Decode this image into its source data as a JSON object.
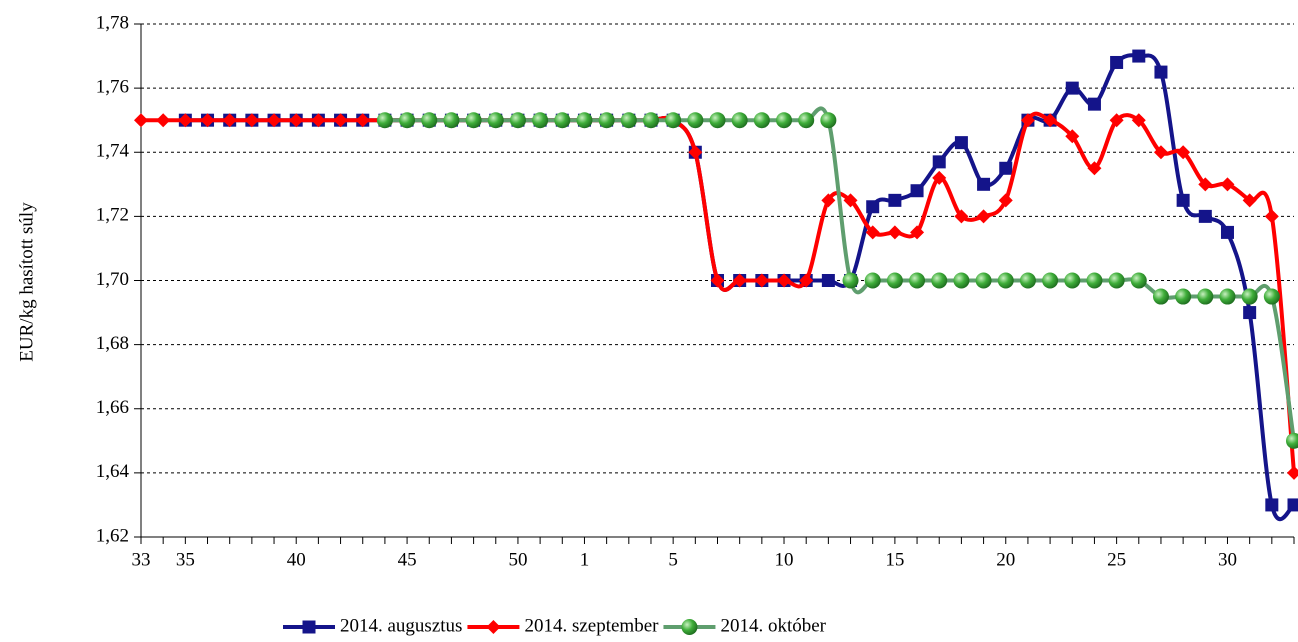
{
  "chart_data": {
    "type": "line",
    "ylabel": "EUR/kg hasított súly",
    "categories": [
      "33",
      null,
      "35",
      null,
      null,
      null,
      null,
      "40",
      null,
      null,
      null,
      null,
      "45",
      null,
      null,
      null,
      null,
      "50",
      null,
      null,
      "1",
      null,
      null,
      null,
      "5",
      null,
      null,
      null,
      null,
      "10",
      null,
      null,
      null,
      null,
      "15",
      null,
      null,
      null,
      null,
      "20",
      null,
      null,
      null,
      null,
      "25",
      null,
      null,
      null,
      null,
      "30",
      null,
      null,
      null
    ],
    "series": [
      {
        "name": "2014. augusztus",
        "color": "#14148a",
        "marker": "square",
        "values": [
          null,
          null,
          1.75,
          1.75,
          1.75,
          1.75,
          1.75,
          1.75,
          1.75,
          1.75,
          1.75,
          1.75,
          1.75,
          1.75,
          1.75,
          1.75,
          1.75,
          1.75,
          1.75,
          1.75,
          1.75,
          1.75,
          1.75,
          1.75,
          1.75,
          1.74,
          1.7,
          1.7,
          1.7,
          1.7,
          1.7,
          1.7,
          1.7,
          1.723,
          1.725,
          1.728,
          1.737,
          1.743,
          1.73,
          1.735,
          1.75,
          1.75,
          1.76,
          1.755,
          1.768,
          1.77,
          1.765,
          1.725,
          1.72,
          1.715,
          1.69,
          1.63,
          1.63
        ]
      },
      {
        "name": "2014. szeptember",
        "color": "#ff0000",
        "marker": "diamond",
        "values": [
          1.75,
          1.75,
          1.75,
          1.75,
          1.75,
          1.75,
          1.75,
          1.75,
          1.75,
          1.75,
          1.75,
          1.75,
          1.75,
          1.75,
          1.75,
          1.75,
          1.75,
          1.75,
          1.75,
          1.75,
          1.75,
          1.75,
          1.75,
          1.75,
          1.75,
          1.74,
          1.7,
          1.7,
          1.7,
          1.7,
          1.7,
          1.725,
          1.725,
          1.715,
          1.715,
          1.715,
          1.732,
          1.72,
          1.72,
          1.725,
          1.75,
          1.75,
          1.745,
          1.735,
          1.75,
          1.75,
          1.74,
          1.74,
          1.73,
          1.73,
          1.725,
          1.72,
          1.64
        ]
      },
      {
        "name": "2014. október",
        "color": "#5f9e6e",
        "marker": "sphere",
        "values": [
          null,
          null,
          null,
          null,
          null,
          null,
          null,
          null,
          null,
          null,
          null,
          1.75,
          1.75,
          1.75,
          1.75,
          1.75,
          1.75,
          1.75,
          1.75,
          1.75,
          1.75,
          1.75,
          1.75,
          1.75,
          1.75,
          1.75,
          1.75,
          1.75,
          1.75,
          1.75,
          1.75,
          1.75,
          1.7,
          1.7,
          1.7,
          1.7,
          1.7,
          1.7,
          1.7,
          1.7,
          1.7,
          1.7,
          1.7,
          1.7,
          1.7,
          1.7,
          1.695,
          1.695,
          1.695,
          1.695,
          1.695,
          1.695,
          1.65
        ]
      }
    ],
    "ylim": [
      1.62,
      1.78
    ],
    "yticks": [
      {
        "value": 1.62,
        "label": "1,62"
      },
      {
        "value": 1.64,
        "label": "1,64"
      },
      {
        "value": 1.66,
        "label": "1,66"
      },
      {
        "value": 1.68,
        "label": "1,68"
      },
      {
        "value": 1.7,
        "label": "1,70"
      },
      {
        "value": 1.72,
        "label": "1,72"
      },
      {
        "value": 1.74,
        "label": "1,74"
      },
      {
        "value": 1.76,
        "label": "1,76"
      },
      {
        "value": 1.78,
        "label": "1,78"
      }
    ],
    "grid": true,
    "legend": "bottom"
  }
}
